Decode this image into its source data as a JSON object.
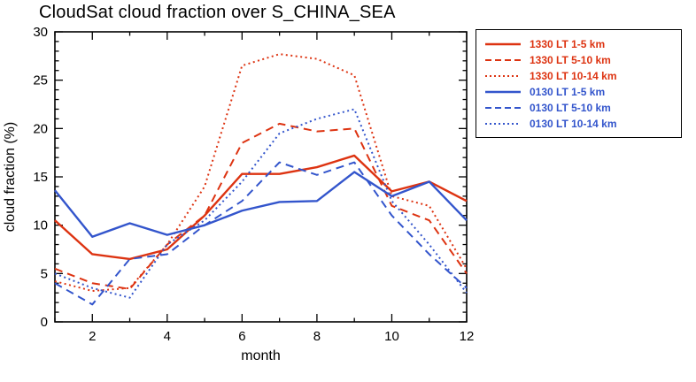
{
  "chart_data": {
    "type": "line",
    "title": "CloudSat cloud fraction over S_CHINA_SEA",
    "xlabel": "month",
    "ylabel": "cloud fraction (%)",
    "xlim": [
      1,
      12
    ],
    "ylim": [
      0,
      30
    ],
    "x": [
      1,
      2,
      3,
      4,
      5,
      6,
      7,
      8,
      9,
      10,
      11,
      12
    ],
    "x_major_ticks": [
      2,
      4,
      6,
      8,
      10,
      12
    ],
    "y_major_ticks": [
      0,
      5,
      10,
      15,
      20,
      25,
      30
    ],
    "grid": false,
    "legend_position": "outside-top-right",
    "colors": {
      "red": "#dd3311",
      "blue": "#3355cc",
      "axis": "#000000",
      "background": "#ffffff"
    },
    "series": [
      {
        "name": "1330 LT 1-5 km",
        "color": "#dd3311",
        "style": "solid",
        "values": [
          10.5,
          7.0,
          6.5,
          7.5,
          11.0,
          15.3,
          15.3,
          16.0,
          17.2,
          13.5,
          14.5,
          12.5
        ]
      },
      {
        "name": "1330 LT 5-10 km",
        "color": "#dd3311",
        "style": "dashed",
        "values": [
          5.5,
          4.0,
          3.4,
          8.0,
          11.0,
          18.5,
          20.5,
          19.7,
          20.0,
          12.0,
          10.5,
          5.0
        ]
      },
      {
        "name": "1330 LT 10-14 km",
        "color": "#dd3311",
        "style": "dotted",
        "values": [
          4.2,
          3.2,
          3.5,
          8.0,
          14.0,
          26.5,
          27.7,
          27.2,
          25.5,
          13.0,
          12.0,
          5.5
        ]
      },
      {
        "name": "0130 LT 1-5 km",
        "color": "#3355cc",
        "style": "solid",
        "values": [
          13.6,
          8.8,
          10.2,
          9.0,
          10.0,
          11.5,
          12.4,
          12.5,
          15.5,
          13.0,
          14.5,
          10.5
        ]
      },
      {
        "name": "0130 LT 5-10 km",
        "color": "#3355cc",
        "style": "dashed",
        "values": [
          4.0,
          1.8,
          6.5,
          7.0,
          10.0,
          12.5,
          16.5,
          15.2,
          16.5,
          11.0,
          7.0,
          3.5
        ]
      },
      {
        "name": "0130 LT 10-14 km",
        "color": "#3355cc",
        "style": "dotted",
        "values": [
          5.0,
          3.5,
          2.5,
          8.0,
          10.5,
          14.5,
          19.5,
          21.0,
          22.0,
          12.5,
          8.0,
          3.0
        ]
      }
    ]
  }
}
